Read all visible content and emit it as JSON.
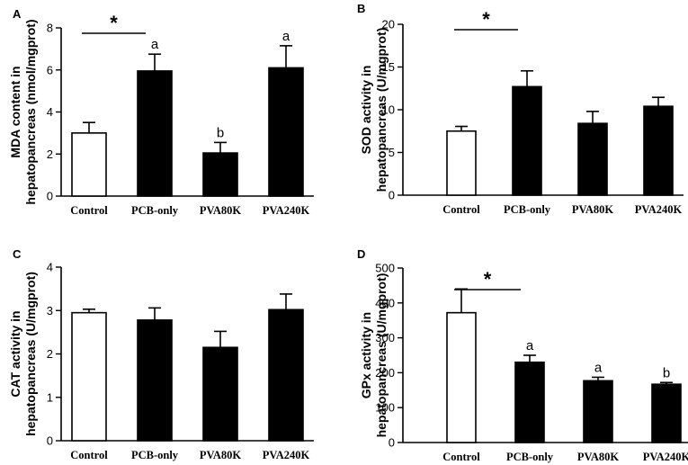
{
  "chart_data": [
    {
      "type": "bar",
      "panel": "A",
      "categories": [
        "Control",
        "PCB-only",
        "PVA80K",
        "PVA240K"
      ],
      "values": [
        3.0,
        5.95,
        2.05,
        6.1
      ],
      "errors": [
        0.5,
        0.8,
        0.5,
        1.05
      ],
      "fills": [
        "#ffffff",
        "#000000",
        "#000000",
        "#000000"
      ],
      "ylabel_lines": [
        "MDA content in",
        "hepatopancreas (nmol/mgprot)"
      ],
      "ylim": [
        0,
        8
      ],
      "yticks": [
        0,
        2,
        4,
        6,
        8
      ],
      "letters": [
        "",
        "a",
        "b",
        "a"
      ],
      "significance": {
        "label": "*",
        "from": 0,
        "to": 1
      }
    },
    {
      "type": "bar",
      "panel": "B",
      "categories": [
        "Control",
        "PCB-only",
        "PVA80K",
        "PVA240K"
      ],
      "values": [
        7.5,
        12.7,
        8.4,
        10.4
      ],
      "errors": [
        0.55,
        1.85,
        1.4,
        1.05
      ],
      "fills": [
        "#ffffff",
        "#000000",
        "#000000",
        "#000000"
      ],
      "ylabel_lines": [
        "SOD activity in",
        "hepatopancreas (U/mgprot)"
      ],
      "ylim": [
        0,
        20
      ],
      "yticks": [
        0,
        5,
        10,
        15,
        20
      ],
      "letters": [
        "",
        "",
        "",
        ""
      ],
      "significance": {
        "label": "*",
        "from": 0,
        "to": 1
      }
    },
    {
      "type": "bar",
      "panel": "C",
      "categories": [
        "Control",
        "PCB-only",
        "PVA80K",
        "PVA240K"
      ],
      "values": [
        2.95,
        2.78,
        2.15,
        3.02
      ],
      "errors": [
        0.08,
        0.28,
        0.37,
        0.36
      ],
      "fills": [
        "#ffffff",
        "#000000",
        "#000000",
        "#000000"
      ],
      "ylabel_lines": [
        "CAT activity in",
        "hepatopancreas (U/mgprot)"
      ],
      "ylim": [
        0,
        4
      ],
      "yticks": [
        0,
        1,
        2,
        3,
        4
      ],
      "letters": [
        "",
        "",
        "",
        ""
      ],
      "significance": null
    },
    {
      "type": "bar",
      "panel": "D",
      "categories": [
        "Control",
        "PCB-only",
        "PVA80K",
        "PVA240K"
      ],
      "values": [
        372,
        230,
        177,
        167
      ],
      "errors": [
        68,
        20,
        10,
        5
      ],
      "fills": [
        "#ffffff",
        "#000000",
        "#000000",
        "#000000"
      ],
      "ylabel_lines": [
        "GPx activity in",
        "hepatopancreas (U/mgprot)"
      ],
      "ylim": [
        0,
        500
      ],
      "yticks": [
        0,
        100,
        200,
        300,
        400,
        500
      ],
      "letters": [
        "",
        "a",
        "a",
        "b"
      ],
      "significance": {
        "label": "*",
        "from": 0,
        "to": 1
      }
    }
  ]
}
